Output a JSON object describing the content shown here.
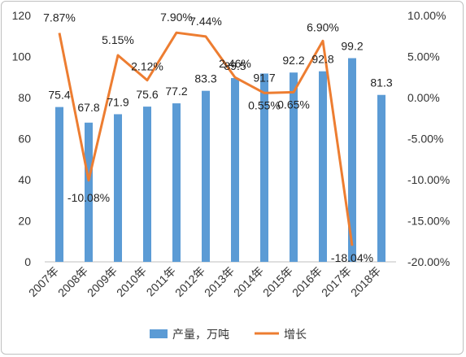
{
  "chart_data": {
    "type": "bar+line",
    "categories": [
      "2007年",
      "2008年",
      "2009年",
      "2010年",
      "2011年",
      "2012年",
      "2013年",
      "2014年",
      "2015年",
      "2016年",
      "2017年",
      "2018年"
    ],
    "series": [
      {
        "name": "产量，万吨",
        "type": "bar",
        "axis": "left",
        "color": "#5b9bd5",
        "values": [
          75.4,
          67.8,
          71.9,
          75.6,
          77.2,
          83.3,
          89.5,
          91.7,
          92.2,
          92.8,
          99.2,
          81.3
        ],
        "labels": [
          "75.4",
          "67.8",
          "71.9",
          "75.6",
          "77.2",
          "83.3",
          "89.5",
          "91.7",
          "92.2",
          "92.8",
          "99.2",
          "81.3"
        ]
      },
      {
        "name": "增长",
        "type": "line",
        "axis": "right",
        "color": "#ed7d31",
        "values": [
          7.87,
          -10.08,
          5.15,
          2.12,
          7.9,
          7.44,
          2.46,
          0.55,
          0.65,
          6.9,
          -18.04,
          null
        ],
        "labels": [
          "7.87%",
          "-10.08%",
          "5.15%",
          "2.12%",
          "7.90%",
          "7.44%",
          "2.46%",
          "0.55%",
          "0.65%",
          "6.90%",
          "-18.04%",
          ""
        ]
      }
    ],
    "y_left": {
      "min": 0,
      "max": 120,
      "ticks": [
        "0",
        "20",
        "40",
        "60",
        "80",
        "100",
        "120"
      ]
    },
    "y_right": {
      "min": -20,
      "max": 10,
      "ticks": [
        "-20.00%",
        "-15.00%",
        "-10.00%",
        "-5.00%",
        "0.00%",
        "5.00%",
        "10.00%"
      ]
    },
    "grid": false,
    "legend": "bottom"
  }
}
